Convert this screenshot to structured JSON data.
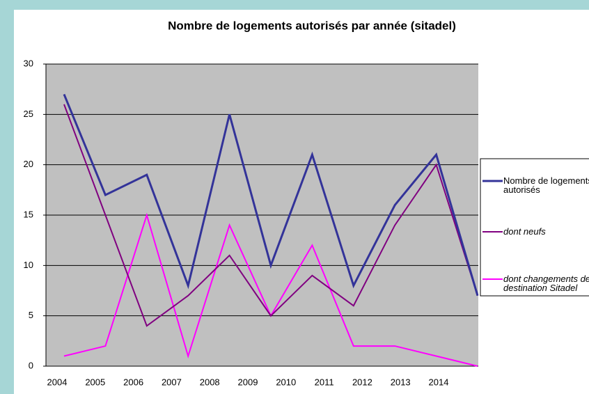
{
  "chart_data": {
    "type": "line",
    "title": "Nombre de logements autorisés par année (sitadel)",
    "categories": [
      "2004",
      "2005",
      "2006",
      "2007",
      "2008",
      "2009",
      "2010",
      "2011",
      "2012",
      "2013",
      "2014"
    ],
    "series": [
      {
        "name": "Nombre de logements autorisés",
        "color": "#333399",
        "values": [
          27,
          17,
          19,
          8,
          25,
          10,
          21,
          8,
          16,
          21,
          7
        ]
      },
      {
        "name": "dont neufs",
        "color": "#800080",
        "values": [
          26,
          15,
          4,
          7,
          11,
          5,
          9,
          6,
          14,
          20,
          7
        ]
      },
      {
        "name": "dont changements de destination Sitadel",
        "color": "#ff00ff",
        "values": [
          1,
          2,
          15,
          1,
          14,
          5,
          12,
          2,
          2,
          1,
          0
        ]
      }
    ],
    "ylim": [
      0,
      30
    ],
    "yticks": [
      0,
      5,
      10,
      15,
      20,
      25,
      30
    ],
    "grid": true,
    "legend": "right"
  }
}
